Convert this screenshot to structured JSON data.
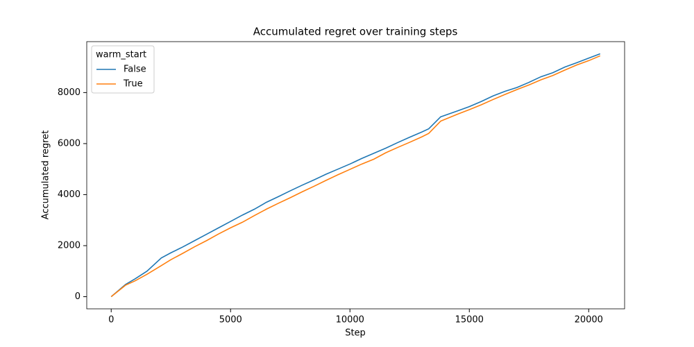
{
  "chart_data": {
    "type": "line",
    "title": "Accumulated regret over training steps",
    "x_label": "Step",
    "y_label": "Accumulated regret",
    "x": [
      0,
      600,
      1000,
      1500,
      2100,
      2500,
      3000,
      3500,
      4000,
      4500,
      5000,
      5500,
      6000,
      6500,
      7000,
      7500,
      8000,
      8500,
      9000,
      9500,
      10000,
      10500,
      11000,
      11500,
      12000,
      12500,
      13000,
      13300,
      13800,
      14500,
      15000,
      15500,
      16000,
      16500,
      17000,
      17500,
      18000,
      18500,
      19000,
      19500,
      20000,
      20480
    ],
    "series": [
      {
        "name": "False",
        "color": "#1f77b4",
        "values": [
          0,
          480,
          700,
          1000,
          1520,
          1720,
          1950,
          2200,
          2450,
          2700,
          2950,
          3200,
          3430,
          3700,
          3920,
          4150,
          4370,
          4580,
          4800,
          5000,
          5200,
          5420,
          5620,
          5820,
          6040,
          6250,
          6450,
          6580,
          7050,
          7280,
          7450,
          7650,
          7870,
          8050,
          8200,
          8400,
          8620,
          8780,
          9000,
          9170,
          9350,
          9520
        ]
      },
      {
        "name": "True",
        "color": "#ff7f0e",
        "values": [
          0,
          450,
          620,
          880,
          1220,
          1450,
          1700,
          1960,
          2200,
          2460,
          2700,
          2920,
          3180,
          3430,
          3660,
          3880,
          4110,
          4330,
          4560,
          4780,
          4990,
          5200,
          5390,
          5640,
          5850,
          6050,
          6260,
          6400,
          6880,
          7150,
          7330,
          7520,
          7730,
          7930,
          8120,
          8300,
          8500,
          8670,
          8880,
          9080,
          9250,
          9440
        ]
      }
    ],
    "legend_title": "warm_start",
    "legend": "upper left",
    "xlim": [
      -1024,
      21504
    ],
    "xticks": [
      0,
      5000,
      10000,
      15000,
      20000
    ],
    "ylim": [
      -476,
      9996
    ],
    "yticks": [
      0,
      2000,
      4000,
      6000,
      8000
    ]
  }
}
